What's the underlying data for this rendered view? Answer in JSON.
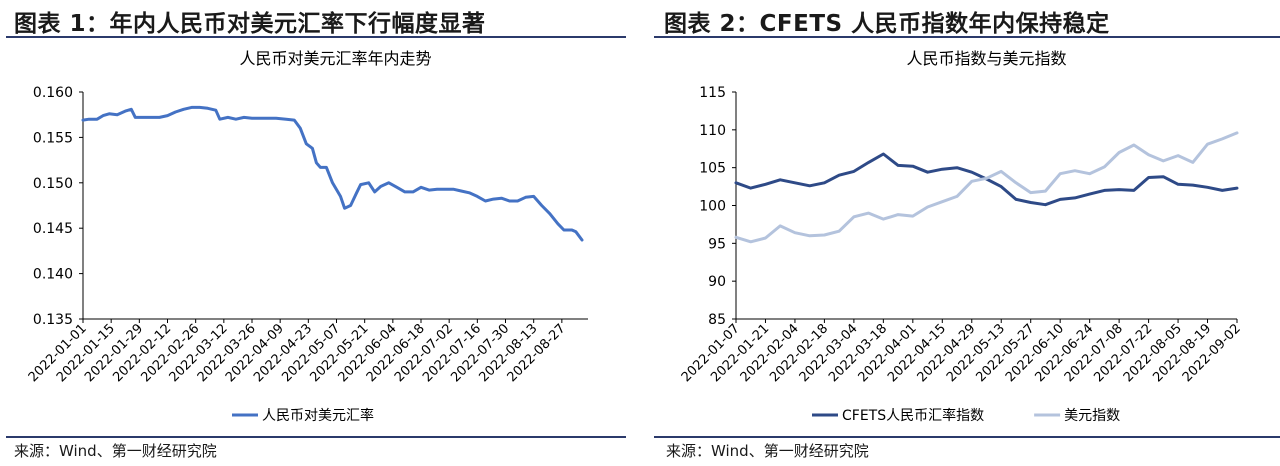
{
  "left": {
    "figure_title": "图表 1：年内人民币对美元汇率下行幅度显著",
    "source": "来源：Wind、第一财经研究院"
  },
  "right": {
    "figure_title": "图表 2：CFETS 人民币指数年内保持稳定",
    "source": "来源：Wind、第一财经研究院"
  },
  "chart_data": [
    {
      "type": "line",
      "title": "人民币对美元汇率年内走势",
      "xlabel": "",
      "ylabel": "",
      "ylim": [
        0.135,
        0.16
      ],
      "yticks": [
        0.135,
        0.14,
        0.145,
        0.15,
        0.155,
        0.16
      ],
      "ytick_labels": [
        "0.135",
        "0.140",
        "0.145",
        "0.150",
        "0.155",
        "0.160"
      ],
      "x_tick_labels": [
        "2022-01-01",
        "2022-01-15",
        "2022-01-29",
        "2022-02-12",
        "2022-02-26",
        "2022-03-12",
        "2022-03-26",
        "2022-04-09",
        "2022-04-23",
        "2022-05-07",
        "2022-05-21",
        "2022-06-04",
        "2022-06-18",
        "2022-07-02",
        "2022-07-16",
        "2022-07-30",
        "2022-08-13",
        "2022-08-27"
      ],
      "x_start": "2022-01-01",
      "x_end": "2022-09-09",
      "legend_position": "bottom",
      "grid": false,
      "series": [
        {
          "name": "人民币对美元汇率",
          "color": "#4472c4",
          "points": [
            [
              "2022-01-01",
              0.1569
            ],
            [
              "2022-01-04",
              0.157
            ],
            [
              "2022-01-08",
              0.157
            ],
            [
              "2022-01-11",
              0.1574
            ],
            [
              "2022-01-14",
              0.1576
            ],
            [
              "2022-01-18",
              0.1575
            ],
            [
              "2022-01-22",
              0.1579
            ],
            [
              "2022-01-25",
              0.1581
            ],
            [
              "2022-01-27",
              0.1572
            ],
            [
              "2022-02-02",
              0.1572
            ],
            [
              "2022-02-08",
              0.1572
            ],
            [
              "2022-02-12",
              0.1574
            ],
            [
              "2022-02-16",
              0.1578
            ],
            [
              "2022-02-20",
              0.1581
            ],
            [
              "2022-02-24",
              0.1583
            ],
            [
              "2022-02-28",
              0.1583
            ],
            [
              "2022-03-04",
              0.1582
            ],
            [
              "2022-03-08",
              0.158
            ],
            [
              "2022-03-10",
              0.157
            ],
            [
              "2022-03-14",
              0.1572
            ],
            [
              "2022-03-18",
              0.157
            ],
            [
              "2022-03-22",
              0.1572
            ],
            [
              "2022-03-26",
              0.1571
            ],
            [
              "2022-03-30",
              0.1571
            ],
            [
              "2022-04-03",
              0.1571
            ],
            [
              "2022-04-07",
              0.1571
            ],
            [
              "2022-04-12",
              0.157
            ],
            [
              "2022-04-16",
              0.1569
            ],
            [
              "2022-04-19",
              0.156
            ],
            [
              "2022-04-22",
              0.1543
            ],
            [
              "2022-04-25",
              0.1538
            ],
            [
              "2022-04-27",
              0.1522
            ],
            [
              "2022-04-29",
              0.1517
            ],
            [
              "2022-05-02",
              0.1517
            ],
            [
              "2022-05-05",
              0.15
            ],
            [
              "2022-05-09",
              0.1485
            ],
            [
              "2022-05-11",
              0.1472
            ],
            [
              "2022-05-14",
              0.1475
            ],
            [
              "2022-05-17",
              0.1489
            ],
            [
              "2022-05-19",
              0.1498
            ],
            [
              "2022-05-23",
              0.15
            ],
            [
              "2022-05-26",
              0.149
            ],
            [
              "2022-05-29",
              0.1496
            ],
            [
              "2022-06-02",
              0.15
            ],
            [
              "2022-06-06",
              0.1495
            ],
            [
              "2022-06-10",
              0.149
            ],
            [
              "2022-06-14",
              0.149
            ],
            [
              "2022-06-18",
              0.1495
            ],
            [
              "2022-06-22",
              0.1492
            ],
            [
              "2022-06-26",
              0.1493
            ],
            [
              "2022-06-30",
              0.1493
            ],
            [
              "2022-07-04",
              0.1493
            ],
            [
              "2022-07-08",
              0.1491
            ],
            [
              "2022-07-12",
              0.1489
            ],
            [
              "2022-07-16",
              0.1485
            ],
            [
              "2022-07-20",
              0.148
            ],
            [
              "2022-07-24",
              0.1482
            ],
            [
              "2022-07-28",
              0.1483
            ],
            [
              "2022-08-01",
              0.148
            ],
            [
              "2022-08-05",
              0.148
            ],
            [
              "2022-08-09",
              0.1484
            ],
            [
              "2022-08-13",
              0.1485
            ],
            [
              "2022-08-17",
              0.1475
            ],
            [
              "2022-08-21",
              0.1466
            ],
            [
              "2022-08-25",
              0.1455
            ],
            [
              "2022-08-28",
              0.1448
            ],
            [
              "2022-09-01",
              0.1448
            ],
            [
              "2022-09-03",
              0.1446
            ],
            [
              "2022-09-06",
              0.1437
            ]
          ]
        }
      ]
    },
    {
      "type": "line",
      "title": "人民币指数与美元指数",
      "xlabel": "",
      "ylabel": "",
      "ylim": [
        85,
        115
      ],
      "yticks": [
        85,
        90,
        95,
        100,
        105,
        110,
        115
      ],
      "ytick_labels": [
        "85",
        "90",
        "95",
        "100",
        "105",
        "110",
        "115"
      ],
      "x_tick_labels": [
        "2022-01-07",
        "2022-01-21",
        "2022-02-04",
        "2022-02-18",
        "2022-03-04",
        "2022-03-18",
        "2022-04-01",
        "2022-04-15",
        "2022-04-29",
        "2022-05-13",
        "2022-05-27",
        "2022-06-10",
        "2022-06-24",
        "2022-07-08",
        "2022-07-22",
        "2022-08-05",
        "2022-08-19",
        "2022-09-02"
      ],
      "x_start": "2022-01-07",
      "x_end": "2022-09-02",
      "legend_position": "bottom",
      "grid": false,
      "series": [
        {
          "name": "CFETS人民币汇率指数",
          "color": "#2e4a87",
          "points": [
            [
              "2022-01-07",
              103.0
            ],
            [
              "2022-01-14",
              102.3
            ],
            [
              "2022-01-21",
              102.8
            ],
            [
              "2022-01-28",
              103.4
            ],
            [
              "2022-02-04",
              103.0
            ],
            [
              "2022-02-11",
              102.6
            ],
            [
              "2022-02-18",
              103.0
            ],
            [
              "2022-02-25",
              104.0
            ],
            [
              "2022-03-04",
              104.5
            ],
            [
              "2022-03-11",
              105.7
            ],
            [
              "2022-03-18",
              106.8
            ],
            [
              "2022-03-25",
              105.3
            ],
            [
              "2022-04-01",
              105.2
            ],
            [
              "2022-04-08",
              104.4
            ],
            [
              "2022-04-15",
              104.8
            ],
            [
              "2022-04-22",
              105.0
            ],
            [
              "2022-04-29",
              104.4
            ],
            [
              "2022-05-06",
              103.5
            ],
            [
              "2022-05-13",
              102.5
            ],
            [
              "2022-05-20",
              100.8
            ],
            [
              "2022-05-27",
              100.4
            ],
            [
              "2022-06-03",
              100.1
            ],
            [
              "2022-06-10",
              100.8
            ],
            [
              "2022-06-17",
              101.0
            ],
            [
              "2022-06-24",
              101.5
            ],
            [
              "2022-07-01",
              102.0
            ],
            [
              "2022-07-08",
              102.1
            ],
            [
              "2022-07-15",
              102.0
            ],
            [
              "2022-07-22",
              103.7
            ],
            [
              "2022-07-29",
              103.8
            ],
            [
              "2022-08-05",
              102.8
            ],
            [
              "2022-08-12",
              102.7
            ],
            [
              "2022-08-19",
              102.4
            ],
            [
              "2022-08-26",
              102.0
            ],
            [
              "2022-09-02",
              102.3
            ]
          ]
        },
        {
          "name": "美元指数",
          "color": "#b4c3dd",
          "points": [
            [
              "2022-01-07",
              95.8
            ],
            [
              "2022-01-14",
              95.2
            ],
            [
              "2022-01-21",
              95.7
            ],
            [
              "2022-01-28",
              97.3
            ],
            [
              "2022-02-04",
              96.4
            ],
            [
              "2022-02-11",
              96.0
            ],
            [
              "2022-02-18",
              96.1
            ],
            [
              "2022-02-25",
              96.6
            ],
            [
              "2022-03-04",
              98.5
            ],
            [
              "2022-03-11",
              99.0
            ],
            [
              "2022-03-18",
              98.2
            ],
            [
              "2022-03-25",
              98.8
            ],
            [
              "2022-04-01",
              98.6
            ],
            [
              "2022-04-08",
              99.8
            ],
            [
              "2022-04-15",
              100.5
            ],
            [
              "2022-04-22",
              101.2
            ],
            [
              "2022-04-29",
              103.2
            ],
            [
              "2022-05-06",
              103.6
            ],
            [
              "2022-05-13",
              104.5
            ],
            [
              "2022-05-20",
              103.0
            ],
            [
              "2022-05-27",
              101.7
            ],
            [
              "2022-06-03",
              101.9
            ],
            [
              "2022-06-10",
              104.2
            ],
            [
              "2022-06-17",
              104.6
            ],
            [
              "2022-06-24",
              104.2
            ],
            [
              "2022-07-01",
              105.1
            ],
            [
              "2022-07-08",
              107.0
            ],
            [
              "2022-07-15",
              108.0
            ],
            [
              "2022-07-22",
              106.7
            ],
            [
              "2022-07-29",
              105.9
            ],
            [
              "2022-08-05",
              106.6
            ],
            [
              "2022-08-12",
              105.7
            ],
            [
              "2022-08-19",
              108.1
            ],
            [
              "2022-08-26",
              108.8
            ],
            [
              "2022-09-02",
              109.6
            ]
          ]
        }
      ]
    }
  ]
}
